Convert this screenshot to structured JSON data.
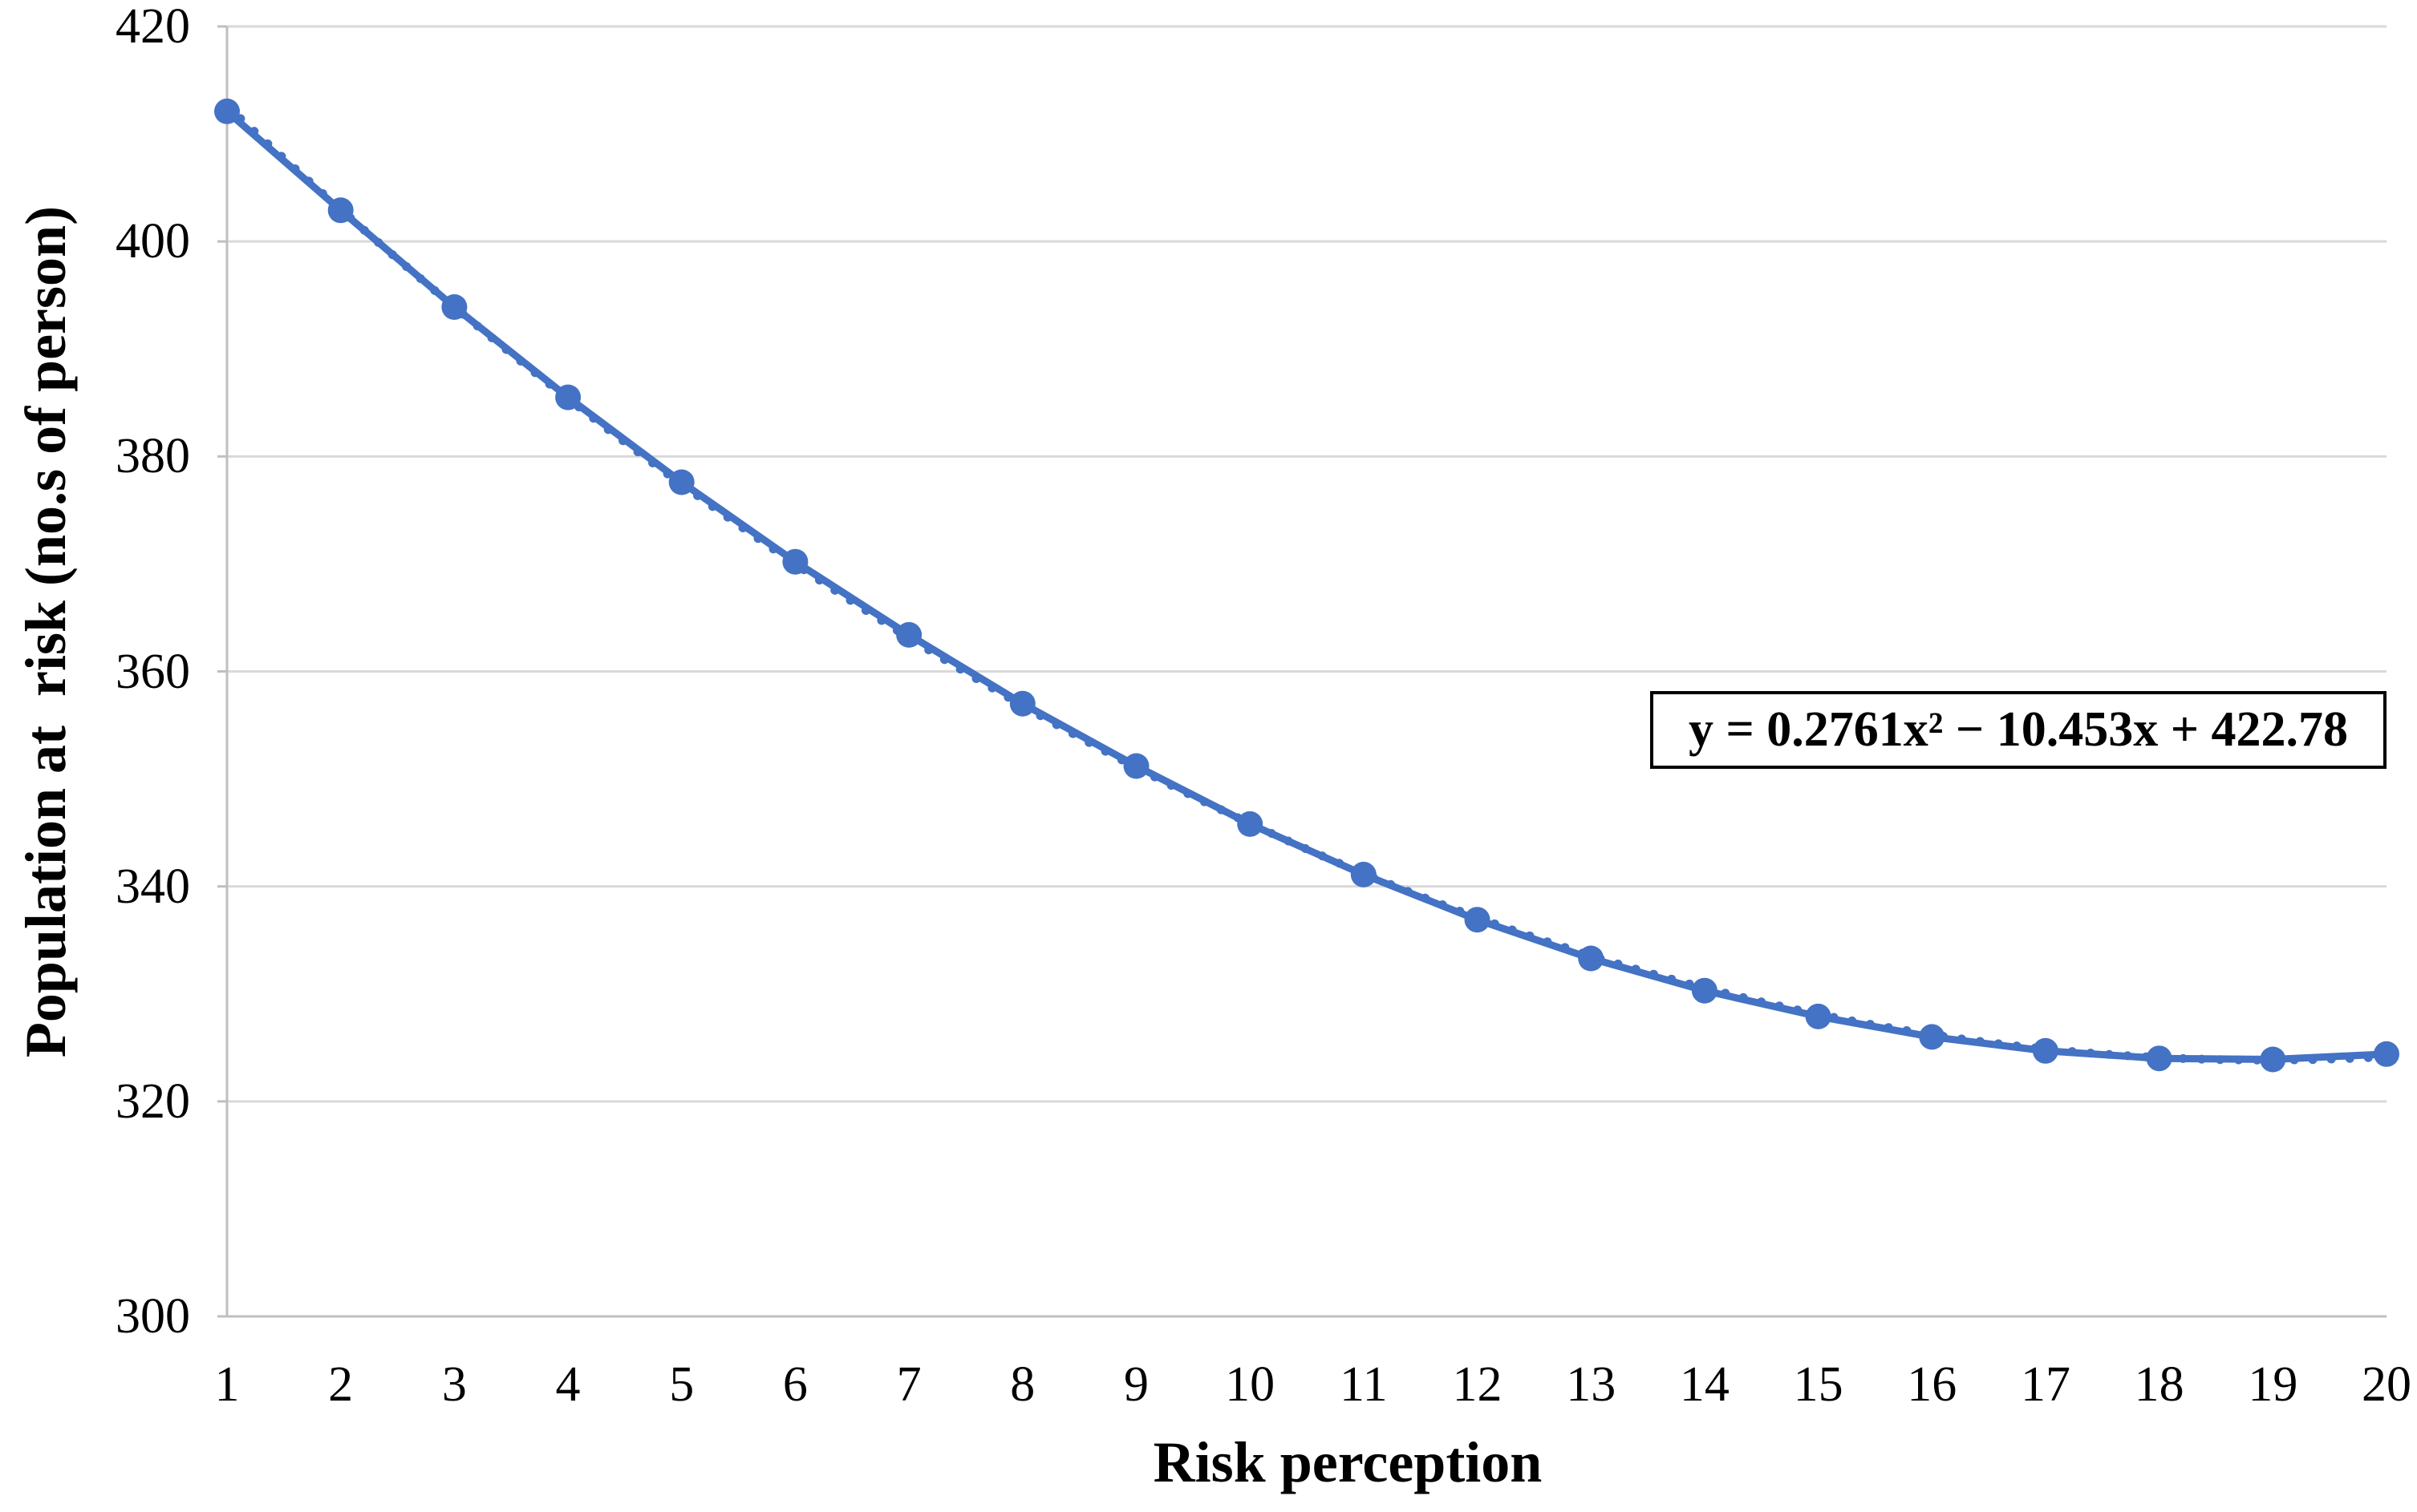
{
  "chart_data": {
    "type": "line",
    "title": "",
    "xlabel": "Risk perception",
    "ylabel": "Population at  risk (no.s of person)",
    "x": [
      1,
      2,
      3,
      4,
      5,
      6,
      7,
      8,
      9,
      10,
      11,
      12,
      13,
      14,
      15,
      16,
      17,
      18,
      19,
      20
    ],
    "x_tick_labels": [
      "1",
      "2",
      "3",
      "4",
      "5",
      "6",
      "7",
      "8",
      "9",
      "10",
      "11",
      "12",
      "13",
      "14",
      "15",
      "16",
      "17",
      "18",
      "19",
      "20"
    ],
    "series": [
      {
        "name": "Population at risk",
        "values": [
          412.1,
          402.9,
          393.9,
          385.5,
          377.6,
          370.2,
          363.4,
          357.0,
          351.2,
          345.8,
          341.1,
          336.9,
          333.3,
          330.3,
          327.9,
          326.0,
          324.7,
          324.0,
          323.9,
          324.4
        ]
      }
    ],
    "trendline": {
      "label": "y = 0.2761x² − 10.453x + 422.78",
      "a": 0.2761,
      "b": -10.453,
      "c": 422.78,
      "style": "dotted"
    },
    "ylim": [
      300,
      420
    ],
    "y_ticks": [
      300,
      320,
      340,
      360,
      380,
      400,
      420
    ],
    "grid": true,
    "legend": "none",
    "marker": "circle",
    "colors": {
      "series": "#4472C4",
      "gridline": "#D9D9D9",
      "axis": "#BFBFBF",
      "text": "#000000",
      "equation_border": "#000000",
      "background": "#FFFFFF"
    }
  }
}
